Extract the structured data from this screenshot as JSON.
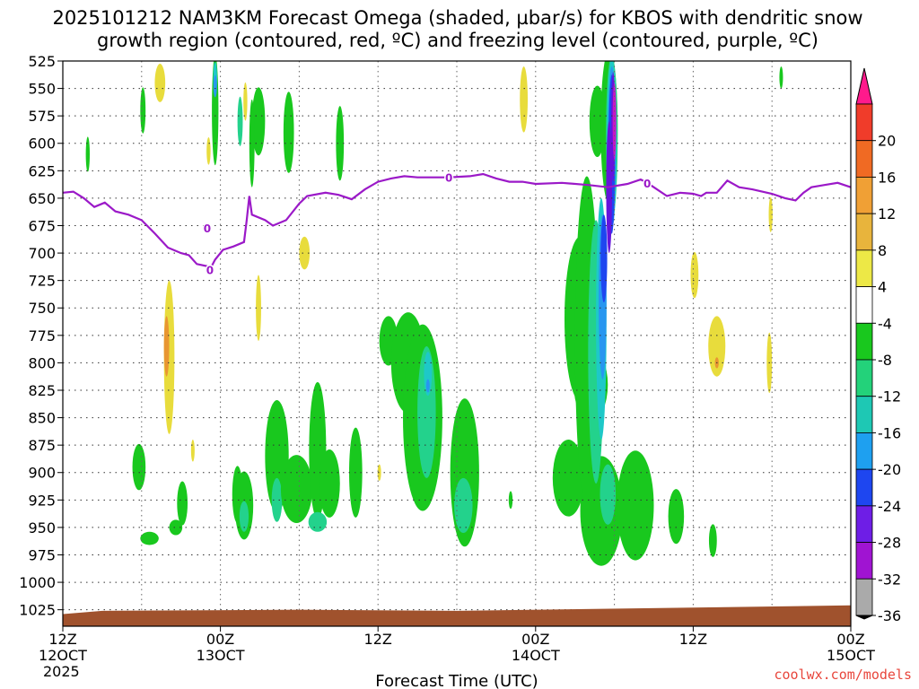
{
  "chart_data": {
    "type": "heatmap",
    "title_line1": "2025101212 NAM3KM Forecast Omega (shaded, µbar/s) for KBOS with dendritic snow",
    "title_line2": "growth region (contoured, red, ºC) and freezing level (contoured, purple, ºC)",
    "xlabel": "Forecast Time (UTC)",
    "credit": "coolwx.com/models",
    "x_range_hours": [
      0,
      60
    ],
    "y_levels": [
      "525",
      "550",
      "575",
      "600",
      "625",
      "650",
      "675",
      "700",
      "725",
      "750",
      "775",
      "800",
      "825",
      "850",
      "875",
      "900",
      "925",
      "950",
      "975",
      "1000",
      "1025"
    ],
    "y_range_hpa": [
      525,
      1040
    ],
    "x_ticks": [
      {
        "hour": 0,
        "top": "12Z",
        "mid": "12OCT",
        "bottom": "2025"
      },
      {
        "hour": 12,
        "top": "00Z",
        "mid": "13OCT",
        "bottom": ""
      },
      {
        "hour": 24,
        "top": "12Z",
        "mid": "",
        "bottom": ""
      },
      {
        "hour": 36,
        "top": "00Z",
        "mid": "14OCT",
        "bottom": ""
      },
      {
        "hour": 48,
        "top": "12Z",
        "mid": "",
        "bottom": ""
      },
      {
        "hour": 60,
        "top": "00Z",
        "mid": "15OCT",
        "bottom": ""
      }
    ],
    "colorbar": {
      "labels": [
        "20",
        "16",
        "12",
        "8",
        "4",
        "-4",
        "-8",
        "-12",
        "-16",
        "-20",
        "-24",
        "-28",
        "-32",
        "-36"
      ],
      "colors": [
        "#ff1a8c",
        "#f03c2a",
        "#f06a23",
        "#f0a035",
        "#e8b43c",
        "#ede846",
        "#ffffff",
        "#19c81e",
        "#23d27a",
        "#1ec8b4",
        "#1ea0f0",
        "#1e46f0",
        "#6e1ee6",
        "#a014d2",
        "#aaaaaa",
        "#000000"
      ]
    },
    "colors": {
      "gm": "#19c81e",
      "gt": "#23d28c",
      "cy": "#1ec8c8",
      "bl": "#2896f0",
      "db": "#1e46f0",
      "pu": "#6414dc",
      "mg": "#c814c8",
      "ye": "#e8dc3c",
      "or": "#e89632",
      "ground": "#a0522d",
      "freezing": "#9b19c8"
    },
    "freezing_label": "0",
    "freezing_level": [
      [
        0,
        645
      ],
      [
        0.8,
        644
      ],
      [
        1.6,
        650
      ],
      [
        2.4,
        658
      ],
      [
        3.2,
        654
      ],
      [
        4,
        662
      ],
      [
        5,
        665
      ],
      [
        6,
        670
      ],
      [
        7,
        682
      ],
      [
        8,
        695
      ],
      [
        9,
        700
      ],
      [
        9.6,
        702
      ],
      [
        10.2,
        710
      ],
      [
        11,
        712
      ],
      [
        11.2,
        715
      ],
      [
        11.6,
        706
      ],
      [
        12.2,
        697
      ],
      [
        13,
        694
      ],
      [
        13.8,
        690
      ],
      [
        14,
        670
      ],
      [
        14.2,
        648
      ],
      [
        14.4,
        665
      ],
      [
        15.4,
        670
      ],
      [
        16,
        675
      ],
      [
        17,
        670
      ],
      [
        18,
        655
      ],
      [
        18.6,
        648
      ],
      [
        20,
        645
      ],
      [
        21,
        647
      ],
      [
        22,
        651
      ],
      [
        23,
        642
      ],
      [
        24,
        635
      ],
      [
        25,
        632
      ],
      [
        26,
        630
      ],
      [
        27,
        631
      ],
      [
        29.4,
        631
      ],
      [
        31,
        630
      ],
      [
        32,
        628
      ],
      [
        33,
        632
      ],
      [
        34,
        635
      ],
      [
        35,
        635
      ],
      [
        36,
        637
      ],
      [
        38,
        636
      ],
      [
        40,
        638
      ],
      [
        41.5,
        640
      ],
      [
        43,
        637
      ],
      [
        44,
        633
      ],
      [
        44.5,
        636
      ],
      [
        45,
        640
      ],
      [
        46,
        648
      ],
      [
        47,
        645
      ],
      [
        48,
        646
      ],
      [
        48.6,
        648
      ],
      [
        49,
        645
      ],
      [
        49.8,
        645
      ],
      [
        50.6,
        634
      ],
      [
        51.5,
        640
      ],
      [
        52.5,
        642
      ],
      [
        54,
        646
      ],
      [
        55,
        650
      ],
      [
        55.8,
        652
      ],
      [
        56.4,
        645
      ],
      [
        57,
        640
      ],
      [
        58,
        638
      ],
      [
        59,
        636
      ],
      [
        60,
        640
      ]
    ],
    "features": [
      {
        "c": "gm",
        "x": 1.9,
        "y": 610,
        "w": 0.3,
        "h": 32
      },
      {
        "c": "gm",
        "x": 6.1,
        "y": 570,
        "w": 0.4,
        "h": 42
      },
      {
        "c": "gm",
        "x": 14.9,
        "y": 580,
        "w": 1.0,
        "h": 62
      },
      {
        "c": "gm",
        "x": 17.2,
        "y": 590,
        "w": 0.8,
        "h": 74
      },
      {
        "c": "gm",
        "x": 21.1,
        "y": 600,
        "w": 0.6,
        "h": 68
      },
      {
        "c": "gm",
        "x": 6.6,
        "y": 960,
        "w": 1.4,
        "h": 12
      },
      {
        "c": "gm",
        "x": 5.8,
        "y": 895,
        "w": 1.0,
        "h": 42
      },
      {
        "c": "gm",
        "x": 8.6,
        "y": 950,
        "w": 1.0,
        "h": 14
      },
      {
        "c": "gm",
        "x": 9.1,
        "y": 928,
        "w": 0.8,
        "h": 40
      },
      {
        "c": "gm",
        "x": 13.3,
        "y": 920,
        "w": 0.8,
        "h": 52
      },
      {
        "c": "gm",
        "x": 13.8,
        "y": 930,
        "w": 1.4,
        "h": 62
      },
      {
        "c": "gt",
        "x": 13.8,
        "y": 940,
        "w": 0.7,
        "h": 28
      },
      {
        "c": "gm",
        "x": 16.3,
        "y": 885,
        "w": 1.8,
        "h": 102
      },
      {
        "c": "gt",
        "x": 16.3,
        "y": 925,
        "w": 0.8,
        "h": 40
      },
      {
        "c": "gm",
        "x": 17.8,
        "y": 915,
        "w": 2.4,
        "h": 62
      },
      {
        "c": "gm",
        "x": 19.4,
        "y": 880,
        "w": 1.3,
        "h": 125
      },
      {
        "c": "gt",
        "x": 19.4,
        "y": 945,
        "w": 1.4,
        "h": 18
      },
      {
        "c": "gm",
        "x": 20.3,
        "y": 910,
        "w": 1.6,
        "h": 62
      },
      {
        "c": "gm",
        "x": 22.3,
        "y": 900,
        "w": 1.0,
        "h": 82
      },
      {
        "c": "gm",
        "x": 24.8,
        "y": 780,
        "w": 1.4,
        "h": 45
      },
      {
        "c": "gm",
        "x": 26.3,
        "y": 800,
        "w": 2.6,
        "h": 92
      },
      {
        "c": "gm",
        "x": 27.4,
        "y": 850,
        "w": 3.0,
        "h": 170
      },
      {
        "c": "gt",
        "x": 27.7,
        "y": 845,
        "w": 1.4,
        "h": 120
      },
      {
        "c": "cy",
        "x": 27.8,
        "y": 810,
        "w": 0.6,
        "h": 40
      },
      {
        "c": "bl",
        "x": 27.8,
        "y": 821,
        "w": 0.2,
        "h": 12
      },
      {
        "c": "gm",
        "x": 30.6,
        "y": 900,
        "w": 2.2,
        "h": 135
      },
      {
        "c": "gt",
        "x": 30.5,
        "y": 930,
        "w": 1.4,
        "h": 50
      },
      {
        "c": "gm",
        "x": 34.1,
        "y": 925,
        "w": 0.3,
        "h": 16
      },
      {
        "c": "gm",
        "x": 40.7,
        "y": 580,
        "w": 1.2,
        "h": 65
      },
      {
        "c": "gm",
        "x": 39.4,
        "y": 760,
        "w": 2.4,
        "h": 150
      },
      {
        "c": "gm",
        "x": 40.2,
        "y": 820,
        "w": 2.6,
        "h": 65
      },
      {
        "c": "gm",
        "x": 38.5,
        "y": 905,
        "w": 2.4,
        "h": 70
      },
      {
        "c": "gm",
        "x": 41.0,
        "y": 935,
        "w": 3.2,
        "h": 100
      },
      {
        "c": "gt",
        "x": 41.5,
        "y": 920,
        "w": 1.2,
        "h": 55
      },
      {
        "c": "gt",
        "x": 43.2,
        "y": 940,
        "w": 0.8,
        "h": 28
      },
      {
        "c": "gm",
        "x": 43.6,
        "y": 930,
        "w": 2.8,
        "h": 100
      },
      {
        "c": "gm",
        "x": 46.7,
        "y": 940,
        "w": 1.2,
        "h": 50
      },
      {
        "c": "gm",
        "x": 49.5,
        "y": 962,
        "w": 0.6,
        "h": 30
      },
      {
        "c": "gm",
        "x": 54.7,
        "y": 540,
        "w": 0.2,
        "h": 20
      },
      {
        "c": "gm",
        "x": 39.9,
        "y": 780,
        "w": 1.8,
        "h": 300
      },
      {
        "c": "gt",
        "x": 40.6,
        "y": 790,
        "w": 1.2,
        "h": 240
      },
      {
        "c": "cy",
        "x": 41.0,
        "y": 760,
        "w": 0.8,
        "h": 220
      },
      {
        "c": "bl",
        "x": 41.1,
        "y": 740,
        "w": 0.6,
        "h": 150
      },
      {
        "c": "db",
        "x": 41.2,
        "y": 705,
        "w": 0.5,
        "h": 80
      },
      {
        "c": "gm",
        "x": 41.6,
        "y": 585,
        "w": 1.3,
        "h": 140
      },
      {
        "c": "gt",
        "x": 41.8,
        "y": 595,
        "w": 0.9,
        "h": 150
      },
      {
        "c": "cy",
        "x": 41.8,
        "y": 600,
        "w": 0.75,
        "h": 155
      },
      {
        "c": "bl",
        "x": 41.8,
        "y": 605,
        "w": 0.6,
        "h": 150
      },
      {
        "c": "db",
        "x": 41.8,
        "y": 610,
        "w": 0.5,
        "h": 145
      },
      {
        "c": "pu",
        "x": 41.6,
        "y": 640,
        "w": 0.45,
        "h": 120
      },
      {
        "c": "pu",
        "x": 41.9,
        "y": 585,
        "w": 0.3,
        "h": 100
      },
      {
        "c": "mg",
        "x": 42.0,
        "y": 580,
        "w": 0.2,
        "h": 70
      },
      {
        "c": "gm",
        "x": 11.6,
        "y": 570,
        "w": 0.5,
        "h": 100
      },
      {
        "c": "cy",
        "x": 11.6,
        "y": 540,
        "w": 0.3,
        "h": 28
      },
      {
        "c": "bl",
        "x": 11.6,
        "y": 548,
        "w": 0.2,
        "h": 20
      },
      {
        "c": "gt",
        "x": 13.5,
        "y": 580,
        "w": 0.4,
        "h": 45
      },
      {
        "c": "gm",
        "x": 14.4,
        "y": 600,
        "w": 0.4,
        "h": 80
      },
      {
        "c": "ye",
        "x": 7.4,
        "y": 545,
        "w": 0.8,
        "h": 35
      },
      {
        "c": "ye",
        "x": 11.1,
        "y": 607,
        "w": 0.3,
        "h": 25
      },
      {
        "c": "ye",
        "x": 13.9,
        "y": 562,
        "w": 0.3,
        "h": 35
      },
      {
        "c": "ye",
        "x": 8.1,
        "y": 795,
        "w": 0.8,
        "h": 140
      },
      {
        "c": "or",
        "x": 7.9,
        "y": 785,
        "w": 0.4,
        "h": 55
      },
      {
        "c": "ye",
        "x": 14.9,
        "y": 750,
        "w": 0.4,
        "h": 60
      },
      {
        "c": "ye",
        "x": 18.4,
        "y": 700,
        "w": 0.8,
        "h": 30
      },
      {
        "c": "ye",
        "x": 24.1,
        "y": 900,
        "w": 0.2,
        "h": 15
      },
      {
        "c": "ye",
        "x": 35.1,
        "y": 560,
        "w": 0.6,
        "h": 60
      },
      {
        "c": "ye",
        "x": 48.1,
        "y": 720,
        "w": 0.6,
        "h": 42
      },
      {
        "c": "ye",
        "x": 49.8,
        "y": 785,
        "w": 1.3,
        "h": 55
      },
      {
        "c": "or",
        "x": 49.8,
        "y": 800,
        "w": 0.3,
        "h": 10
      },
      {
        "c": "ye",
        "x": 53.8,
        "y": 800,
        "w": 0.4,
        "h": 55
      },
      {
        "c": "ye",
        "x": 53.9,
        "y": 665,
        "w": 0.3,
        "h": 32
      },
      {
        "c": "ye",
        "x": 9.9,
        "y": 880,
        "w": 0.1,
        "h": 20
      }
    ]
  }
}
